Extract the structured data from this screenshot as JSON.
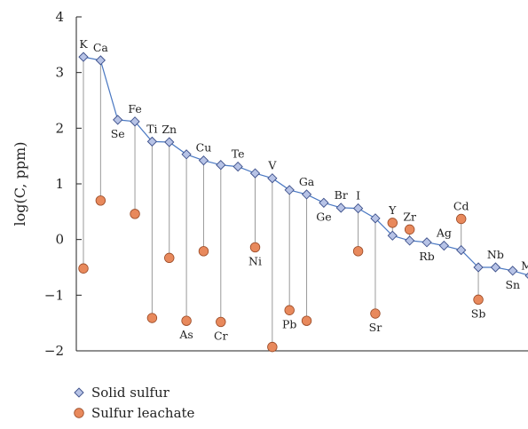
{
  "chart_data": {
    "type": "scatter",
    "ylabel": "log(C, ppm)",
    "ylim": [
      -2,
      4
    ],
    "yticks": [
      "4",
      "3",
      "2",
      "1",
      "0",
      "−1",
      "−2"
    ],
    "legend_position": "bottom-left",
    "grid": false,
    "colors": {
      "solid_fill": "#b7c3e6",
      "solid_stroke": "#3c4f8a",
      "solid_line": "#4a78c2",
      "leachate_fill": "#e8895c",
      "leachate_stroke": "#9a4a26",
      "drop_line": "#9a9a9a"
    },
    "series": [
      {
        "name": "Solid sulfur",
        "marker": "diamond-icon",
        "points": [
          {
            "el": "K",
            "y": 3.28
          },
          {
            "el": "Ca",
            "y": 3.22
          },
          {
            "el": "Se",
            "y": 2.15
          },
          {
            "el": "Fe",
            "y": 2.12
          },
          {
            "el": "Ti",
            "y": 1.76
          },
          {
            "el": "Zn",
            "y": 1.75
          },
          {
            "el": "As",
            "y": 1.53
          },
          {
            "el": "Cu",
            "y": 1.42
          },
          {
            "el": "Cr",
            "y": 1.34
          },
          {
            "el": "Te",
            "y": 1.31
          },
          {
            "el": "Ni",
            "y": 1.19
          },
          {
            "el": "V",
            "y": 1.1
          },
          {
            "el": "Pb",
            "y": 0.89
          },
          {
            "el": "Ga",
            "y": 0.81
          },
          {
            "el": "Ge",
            "y": 0.66
          },
          {
            "el": "Br",
            "y": 0.57
          },
          {
            "el": "I",
            "y": 0.56
          },
          {
            "el": "Sr",
            "y": 0.38
          },
          {
            "el": "Y",
            "y": 0.07
          },
          {
            "el": "Zr",
            "y": -0.02
          },
          {
            "el": "Rb",
            "y": -0.05
          },
          {
            "el": "Ag",
            "y": -0.11
          },
          {
            "el": "Cd",
            "y": -0.19
          },
          {
            "el": "Sb",
            "y": -0.5
          },
          {
            "el": "Nb",
            "y": -0.5
          },
          {
            "el": "Sn",
            "y": -0.56
          },
          {
            "el": "Mo",
            "y": -0.65
          }
        ]
      },
      {
        "name": "Sulfur leachate",
        "marker": "circle-icon",
        "points": [
          {
            "el": "K",
            "y": -0.52
          },
          {
            "el": "Ca",
            "y": 0.7
          },
          {
            "el": "Fe",
            "y": 0.46
          },
          {
            "el": "Ti",
            "y": -1.41
          },
          {
            "el": "Zn",
            "y": -0.33
          },
          {
            "el": "As",
            "y": -1.46
          },
          {
            "el": "Cu",
            "y": -0.21
          },
          {
            "el": "Cr",
            "y": -1.48
          },
          {
            "el": "Ni",
            "y": -0.14
          },
          {
            "el": "V",
            "y": -1.93
          },
          {
            "el": "Pb",
            "y": -1.27
          },
          {
            "el": "Ga",
            "y": -1.46
          },
          {
            "el": "I",
            "y": -0.21
          },
          {
            "el": "Sr",
            "y": -1.33
          },
          {
            "el": "Y",
            "y": 0.3
          },
          {
            "el": "Zr",
            "y": 0.18
          },
          {
            "el": "Cd",
            "y": 0.37
          },
          {
            "el": "Sb",
            "y": -1.08
          }
        ]
      }
    ]
  }
}
